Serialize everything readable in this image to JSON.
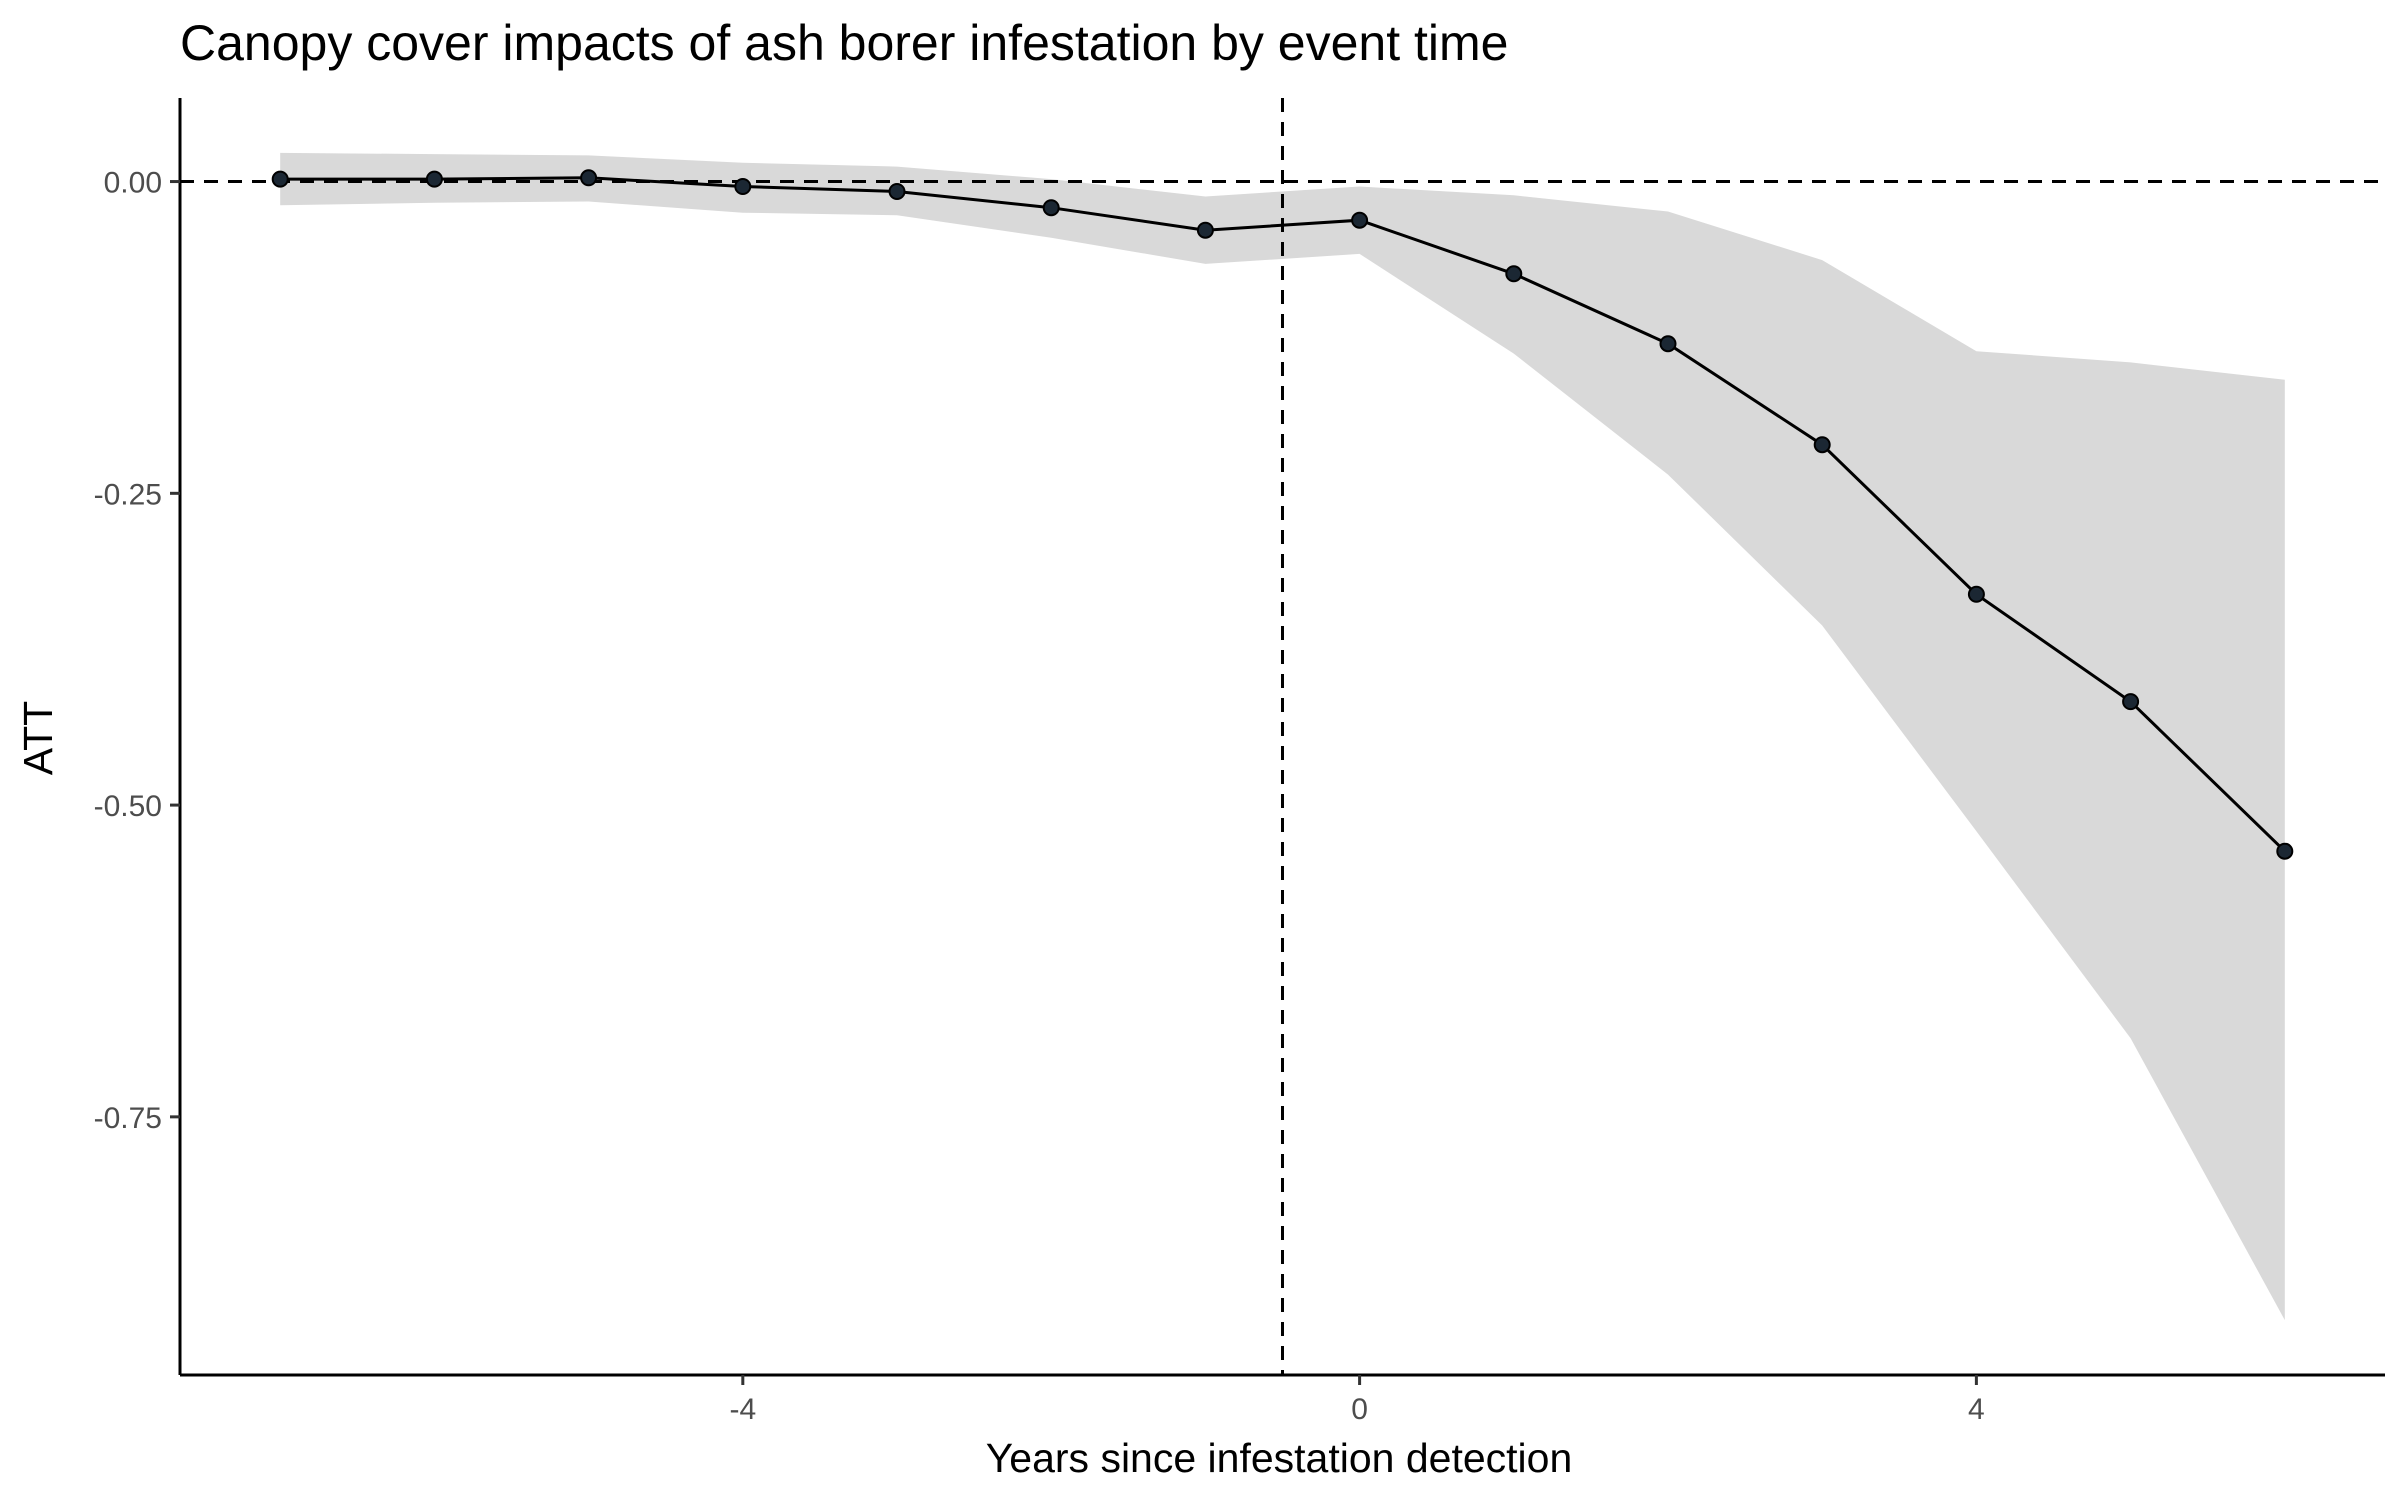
{
  "chart_data": {
    "type": "line",
    "title": "Canopy cover impacts of ash borer infestation by event time",
    "xlabel": "Years since infestation detection",
    "ylabel": "ATT",
    "xlim": [
      -7.65,
      6.65
    ],
    "ylim": [
      -0.957,
      0.067
    ],
    "x_ticks": [
      -4,
      0,
      4
    ],
    "x_tick_labels": [
      "-4",
      "0",
      "4"
    ],
    "y_ticks": [
      0.0,
      -0.25,
      -0.5,
      -0.75
    ],
    "y_tick_labels": [
      "0.00",
      "-0.25",
      "-0.50",
      "-0.75"
    ],
    "grid": false,
    "legend": "none",
    "reference_lines": {
      "horizontal_y": 0,
      "vertical_x": -0.5,
      "style": "dashed"
    },
    "series": [
      {
        "x": [
          -7,
          -6,
          -5,
          -4,
          -3,
          -2,
          -1,
          0,
          1,
          2,
          3,
          4,
          5,
          6
        ],
        "values": [
          0.002,
          0.002,
          0.003,
          -0.004,
          -0.008,
          -0.021,
          -0.039,
          -0.031,
          -0.074,
          -0.13,
          -0.211,
          -0.331,
          -0.417,
          -0.537
        ],
        "ci_lower": [
          -0.019,
          -0.017,
          -0.016,
          -0.025,
          -0.027,
          -0.045,
          -0.066,
          -0.058,
          -0.138,
          -0.235,
          -0.356,
          -0.521,
          -0.687,
          -0.913
        ],
        "ci_upper": [
          0.023,
          0.022,
          0.021,
          0.015,
          0.012,
          0.002,
          -0.012,
          -0.004,
          -0.011,
          -0.024,
          -0.063,
          -0.136,
          -0.145,
          -0.159
        ]
      }
    ],
    "colors": {
      "line": "#000000",
      "point_fill": "#1b2733",
      "ribbon": "#d9d9d9",
      "axis": "#000000",
      "tick_label": "#4d4d4d"
    }
  }
}
